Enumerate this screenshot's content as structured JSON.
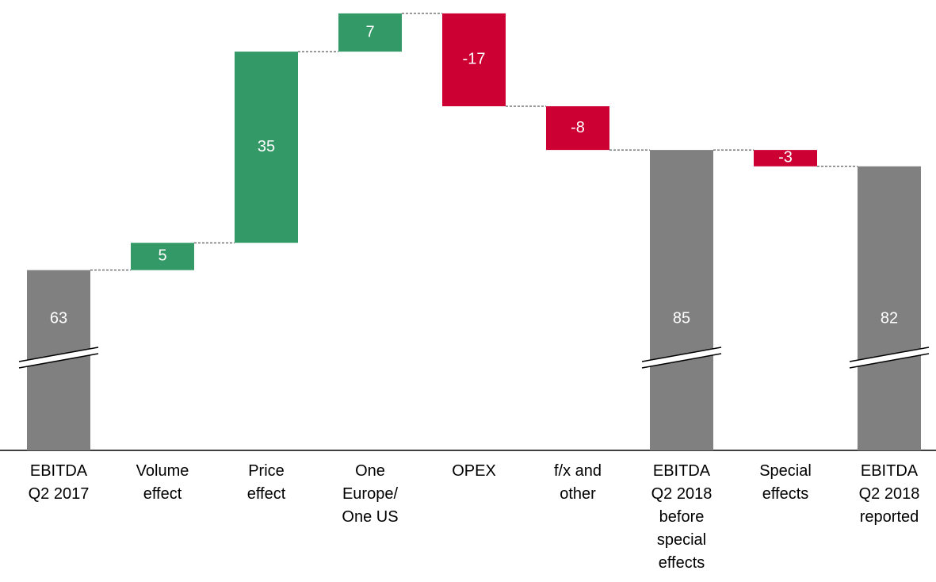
{
  "chart_data": {
    "type": "waterfall",
    "categories": [
      "EBITDA\nQ2 2017",
      "Volume\neffect",
      "Price\neffect",
      "One\nEurope/\nOne US",
      "OPEX",
      "f/x and\nother",
      "EBITDA\nQ2 2018\nbefore\nspecial\neffects",
      "Special\neffects",
      "EBITDA\nQ2 2018\nreported"
    ],
    "values": [
      63,
      5,
      35,
      7,
      -17,
      -8,
      85,
      -3,
      82
    ],
    "measure": [
      "total",
      "delta",
      "delta",
      "delta",
      "delta",
      "delta",
      "total",
      "delta",
      "total"
    ],
    "colors": {
      "total": "#808080",
      "increase": "#339966",
      "decrease": "#cc0033"
    },
    "ylim": [
      30,
      111
    ],
    "axis_break": true
  }
}
